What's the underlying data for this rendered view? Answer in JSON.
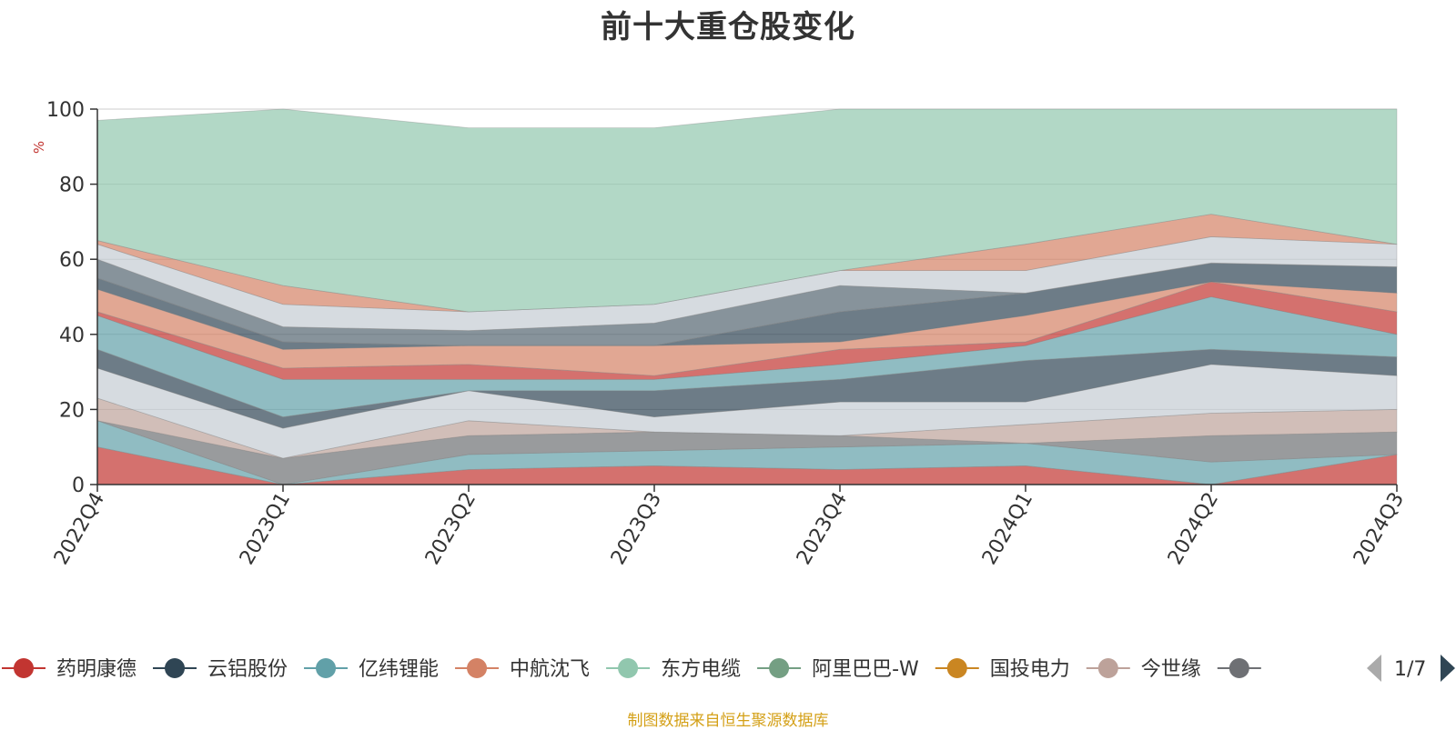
{
  "chart_data": {
    "type": "area",
    "title": "前十大重仓股变化",
    "ylabel": "%",
    "xlabel": "",
    "ylim": [
      0,
      100
    ],
    "yticks": [
      0,
      20,
      40,
      60,
      80,
      100
    ],
    "categories": [
      "2022Q4",
      "2023Q1",
      "2023Q2",
      "2023Q3",
      "2023Q4",
      "2024Q1",
      "2024Q2",
      "2024Q3"
    ],
    "grid": true,
    "legend_position": "bottom",
    "stacking": "stacked, per-period ordering",
    "series": [
      {
        "name": "药明康德",
        "color": "#c23531",
        "values": [
          10,
          0,
          4,
          5,
          0,
          0,
          0,
          0
        ]
      },
      {
        "name": "云铝股份",
        "color": "#2f4554",
        "values": [
          0,
          0,
          0,
          0,
          4,
          5,
          6,
          7
        ]
      },
      {
        "name": "亿纬锂能",
        "color": "#61a0a8",
        "values": [
          7,
          0,
          0,
          0,
          0,
          0,
          0,
          0
        ]
      },
      {
        "name": "中航沈飞",
        "color": "#d48265",
        "values": [
          0,
          7,
          0,
          5,
          5,
          6,
          0,
          0
        ]
      },
      {
        "name": "东方电缆",
        "color": "#91c7ae",
        "values": [
          0,
          0,
          4,
          0,
          0,
          0,
          0,
          0
        ]
      },
      {
        "name": "阿里巴巴-W",
        "color": "#749f83",
        "values": [
          0,
          0,
          0,
          0,
          0,
          0,
          0,
          8
        ]
      },
      {
        "name": "国投电力",
        "color": "#ca8622",
        "values": [
          0,
          0,
          0,
          0,
          0,
          0,
          6,
          0
        ]
      },
      {
        "name": "今世缘",
        "color": "#bda29a",
        "values": [
          6,
          0,
          0,
          0,
          0,
          0,
          0,
          0
        ]
      },
      {
        "name": "",
        "color": "#6e7074",
        "values": [
          0,
          0,
          0,
          0,
          0,
          0,
          0,
          0
        ]
      }
    ],
    "area_stack_colors": [
      "#c23531",
      "#61a0a8",
      "#6e7074",
      "#bda29a",
      "#c4ccd3",
      "#2f4554",
      "#61a0a8",
      "#c23531",
      "#d48265",
      "#2f4554",
      "#546570",
      "#c4ccd3",
      "#d48265",
      "#91c7ae"
    ],
    "area_stack_bounds": [
      [
        0,
        0,
        0,
        0,
        0,
        0,
        0,
        0
      ],
      [
        10,
        0,
        4,
        5,
        4,
        5,
        0,
        8
      ],
      [
        17,
        0,
        8,
        9,
        10,
        11,
        6,
        8
      ],
      [
        17,
        7,
        13,
        14,
        13,
        11,
        13,
        14
      ],
      [
        23,
        7,
        17,
        14,
        13,
        16,
        19,
        20
      ],
      [
        31,
        15,
        25,
        18,
        22,
        22,
        32,
        29
      ],
      [
        36,
        18,
        25,
        25,
        28,
        33,
        36,
        34
      ],
      [
        45,
        28,
        28,
        28,
        32,
        37,
        50,
        40
      ],
      [
        46,
        31,
        32,
        29,
        36,
        38,
        54,
        46
      ],
      [
        52,
        36,
        37,
        37,
        38,
        45,
        54,
        51
      ],
      [
        55,
        38,
        37,
        37,
        46,
        51,
        59,
        58
      ],
      [
        60,
        42,
        41,
        43,
        53,
        51,
        59,
        58
      ],
      [
        64,
        48,
        46,
        48,
        57,
        57,
        66,
        64
      ],
      [
        65,
        53,
        46,
        48,
        57,
        64,
        72,
        64
      ],
      [
        97,
        100,
        95,
        95,
        100,
        100,
        100,
        100
      ]
    ],
    "legend_page": "1/7"
  },
  "source_note": "制图数据来自恒生聚源数据库"
}
